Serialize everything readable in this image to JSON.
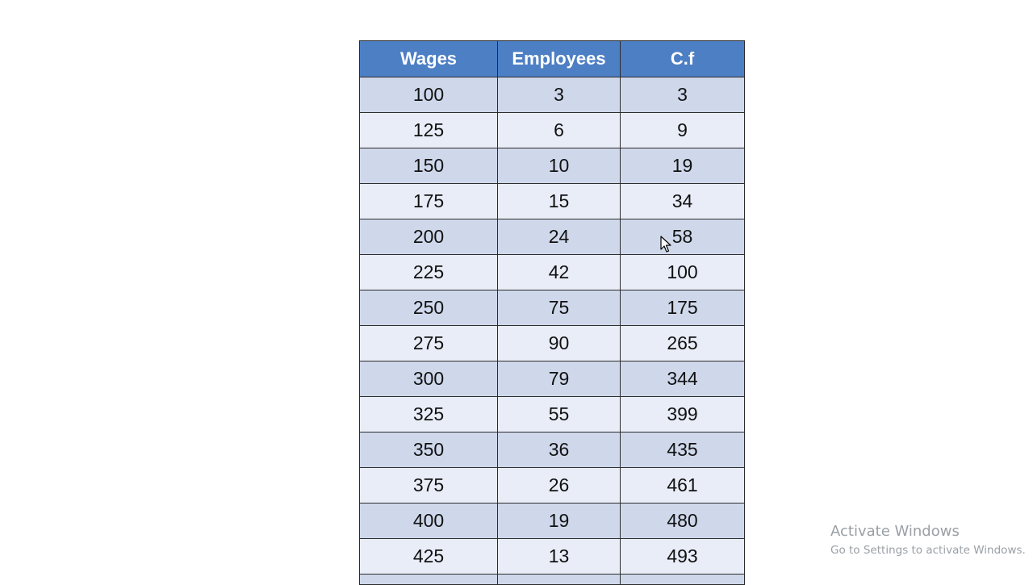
{
  "table": {
    "headers": [
      "Wages",
      "Employees",
      "C.f"
    ],
    "rows": [
      [
        "100",
        "3",
        "3"
      ],
      [
        "125",
        "6",
        "9"
      ],
      [
        "150",
        "10",
        "19"
      ],
      [
        "175",
        "15",
        "34"
      ],
      [
        "200",
        "24",
        "58"
      ],
      [
        "225",
        "42",
        "100"
      ],
      [
        "250",
        "75",
        "175"
      ],
      [
        "275",
        "90",
        "265"
      ],
      [
        "300",
        "79",
        "344"
      ],
      [
        "325",
        "55",
        "399"
      ],
      [
        "350",
        "36",
        "435"
      ],
      [
        "375",
        "26",
        "461"
      ],
      [
        "400",
        "19",
        "480"
      ],
      [
        "425",
        "13",
        "493"
      ]
    ]
  },
  "colors": {
    "header_bg": "#4d7fc4",
    "row_odd_bg": "#cfd8eb",
    "row_even_bg": "#e9edf7"
  },
  "watermark": {
    "title": "Activate Windows",
    "subtitle": "Go to Settings to activate Windows."
  },
  "cursor": {
    "icon": "mouse-pointer-icon"
  }
}
